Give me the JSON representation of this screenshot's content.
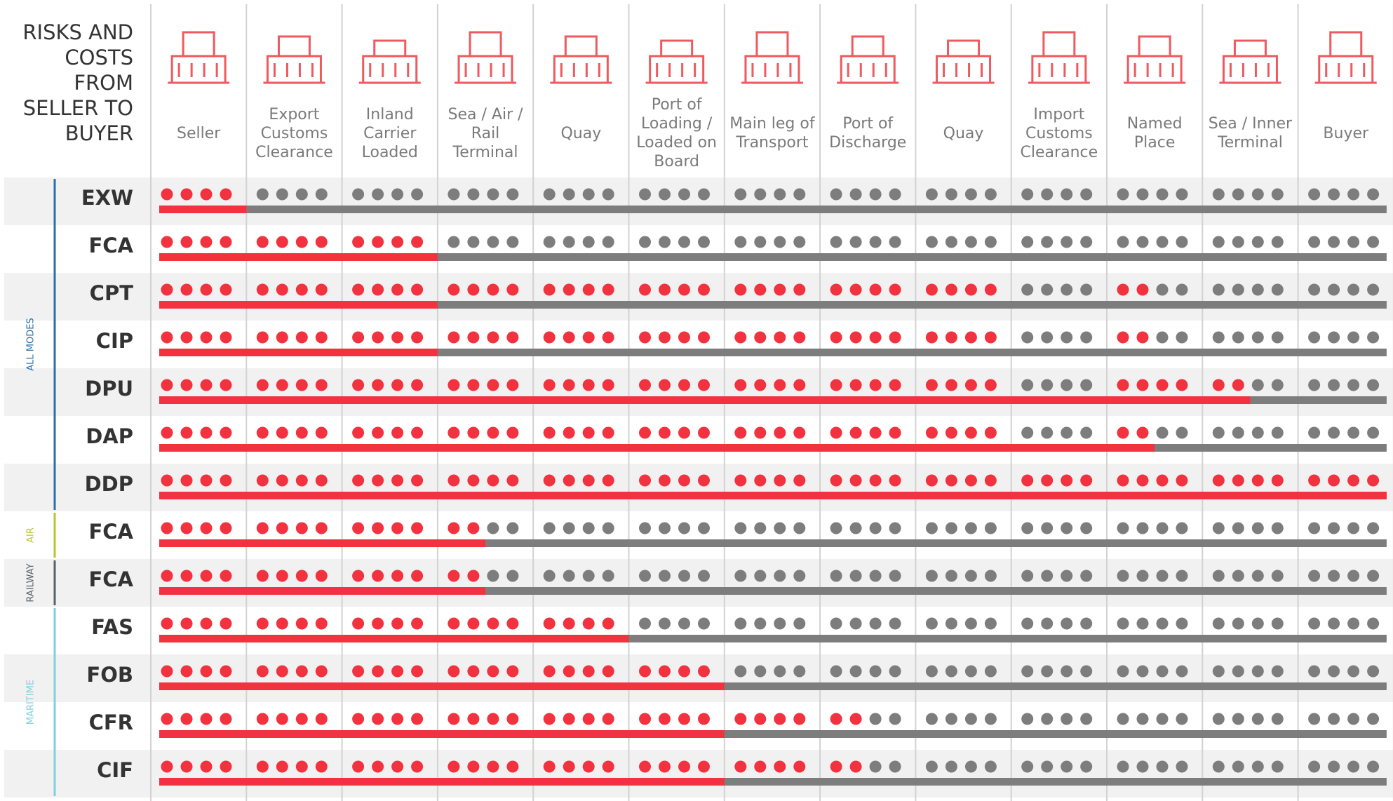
{
  "header": {
    "title": "RISKS AND COSTS FROM SELLER TO BUYER",
    "columns": [
      "Seller",
      "Export Customs Clearance",
      "Inland Carrier Loaded",
      "Sea / Air / Rail Terminal",
      "Quay",
      "Port of Loading / Loaded on Board",
      "Main leg of Transport",
      "Port of Discharge",
      "Quay",
      "Import Customs Clearance",
      "Named Place",
      "Sea / Inner Terminal",
      "Buyer"
    ]
  },
  "groups": [
    {
      "label": "ALL MODES",
      "color": "#2a6fa8",
      "rows": [
        {
          "term": "EXW",
          "cost_dots": [
            4,
            0,
            0,
            0,
            0,
            0,
            0,
            0,
            0,
            0,
            0,
            0,
            0
          ],
          "risk_columns": 1
        },
        {
          "term": "FCA",
          "cost_dots": [
            4,
            4,
            4,
            0,
            0,
            0,
            0,
            0,
            0,
            0,
            0,
            0,
            0
          ],
          "risk_columns": 3
        },
        {
          "term": "CPT",
          "cost_dots": [
            4,
            4,
            4,
            4,
            4,
            4,
            4,
            4,
            4,
            0,
            2,
            0,
            0
          ],
          "risk_columns": 3
        },
        {
          "term": "CIP",
          "cost_dots": [
            4,
            4,
            4,
            4,
            4,
            4,
            4,
            4,
            4,
            0,
            2,
            0,
            0
          ],
          "risk_columns": 3
        },
        {
          "term": "DPU",
          "cost_dots": [
            4,
            4,
            4,
            4,
            4,
            4,
            4,
            4,
            4,
            0,
            4,
            2,
            0
          ],
          "risk_columns": 11.5
        },
        {
          "term": "DAP",
          "cost_dots": [
            4,
            4,
            4,
            4,
            4,
            4,
            4,
            4,
            4,
            0,
            2,
            0,
            0
          ],
          "risk_columns": 10.5
        },
        {
          "term": "DDP",
          "cost_dots": [
            4,
            4,
            4,
            4,
            4,
            4,
            4,
            4,
            4,
            4,
            4,
            4,
            4
          ],
          "risk_columns": 13
        }
      ]
    },
    {
      "label": "AIR",
      "color": "#b5c72b",
      "rows": [
        {
          "term": "FCA",
          "cost_dots": [
            4,
            4,
            4,
            2,
            0,
            0,
            0,
            0,
            0,
            0,
            0,
            0,
            0
          ],
          "risk_columns": 3.5
        }
      ]
    },
    {
      "label": "RAILWAY",
      "color": "#5a6068",
      "rows": [
        {
          "term": "FCA",
          "cost_dots": [
            4,
            4,
            4,
            2,
            0,
            0,
            0,
            0,
            0,
            0,
            0,
            0,
            0
          ],
          "risk_columns": 3.5
        }
      ]
    },
    {
      "label": "MARITIME",
      "color": "#7fd0dc",
      "rows": [
        {
          "term": "FAS",
          "cost_dots": [
            4,
            4,
            4,
            4,
            4,
            0,
            0,
            0,
            0,
            0,
            0,
            0,
            0
          ],
          "risk_columns": 5
        },
        {
          "term": "FOB",
          "cost_dots": [
            4,
            4,
            4,
            4,
            4,
            4,
            0,
            0,
            0,
            0,
            0,
            0,
            0
          ],
          "risk_columns": 6
        },
        {
          "term": "CFR",
          "cost_dots": [
            4,
            4,
            4,
            4,
            4,
            4,
            4,
            2,
            0,
            0,
            0,
            0,
            0
          ],
          "risk_columns": 6
        },
        {
          "term": "CIF",
          "cost_dots": [
            4,
            4,
            4,
            4,
            4,
            4,
            4,
            2,
            0,
            0,
            0,
            0,
            0
          ],
          "risk_columns": 6
        }
      ]
    }
  ]
}
